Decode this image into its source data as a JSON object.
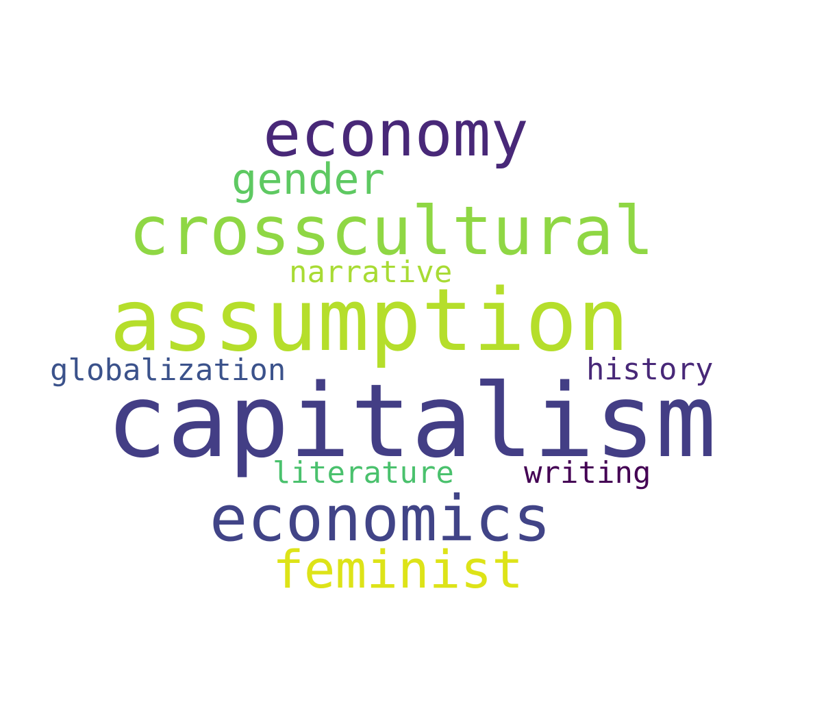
{
  "cloud": {
    "words": [
      {
        "text": "economy",
        "color": "#482878"
      },
      {
        "text": "gender",
        "color": "#5ec962"
      },
      {
        "text": "crosscultural",
        "color": "#8fd744"
      },
      {
        "text": "narrative",
        "color": "#a8db34"
      },
      {
        "text": "assumption",
        "color": "#b5de2b"
      },
      {
        "text": "globalization",
        "color": "#3b528b"
      },
      {
        "text": "history",
        "color": "#482878"
      },
      {
        "text": "capitalism",
        "color": "#433e85"
      },
      {
        "text": "literature",
        "color": "#4ac16d"
      },
      {
        "text": "writing",
        "color": "#440154"
      },
      {
        "text": "economics",
        "color": "#414487"
      },
      {
        "text": "feminist",
        "color": "#dde318"
      }
    ]
  }
}
